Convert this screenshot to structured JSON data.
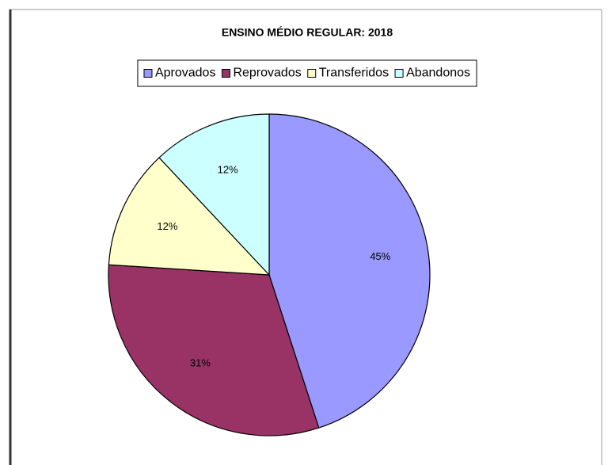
{
  "chart_data": {
    "type": "pie",
    "title": "ENSINO MÉDIO REGULAR: 2018",
    "categories": [
      "Aprovados",
      "Reprovados",
      "Transferidos",
      "Abandonos"
    ],
    "values": [
      45,
      31,
      12,
      12
    ],
    "value_labels": [
      "45%",
      "31%",
      "12%",
      "12%"
    ],
    "colors": [
      "#9999ff",
      "#993366",
      "#ffffcc",
      "#ccffff"
    ],
    "legend": "top"
  }
}
